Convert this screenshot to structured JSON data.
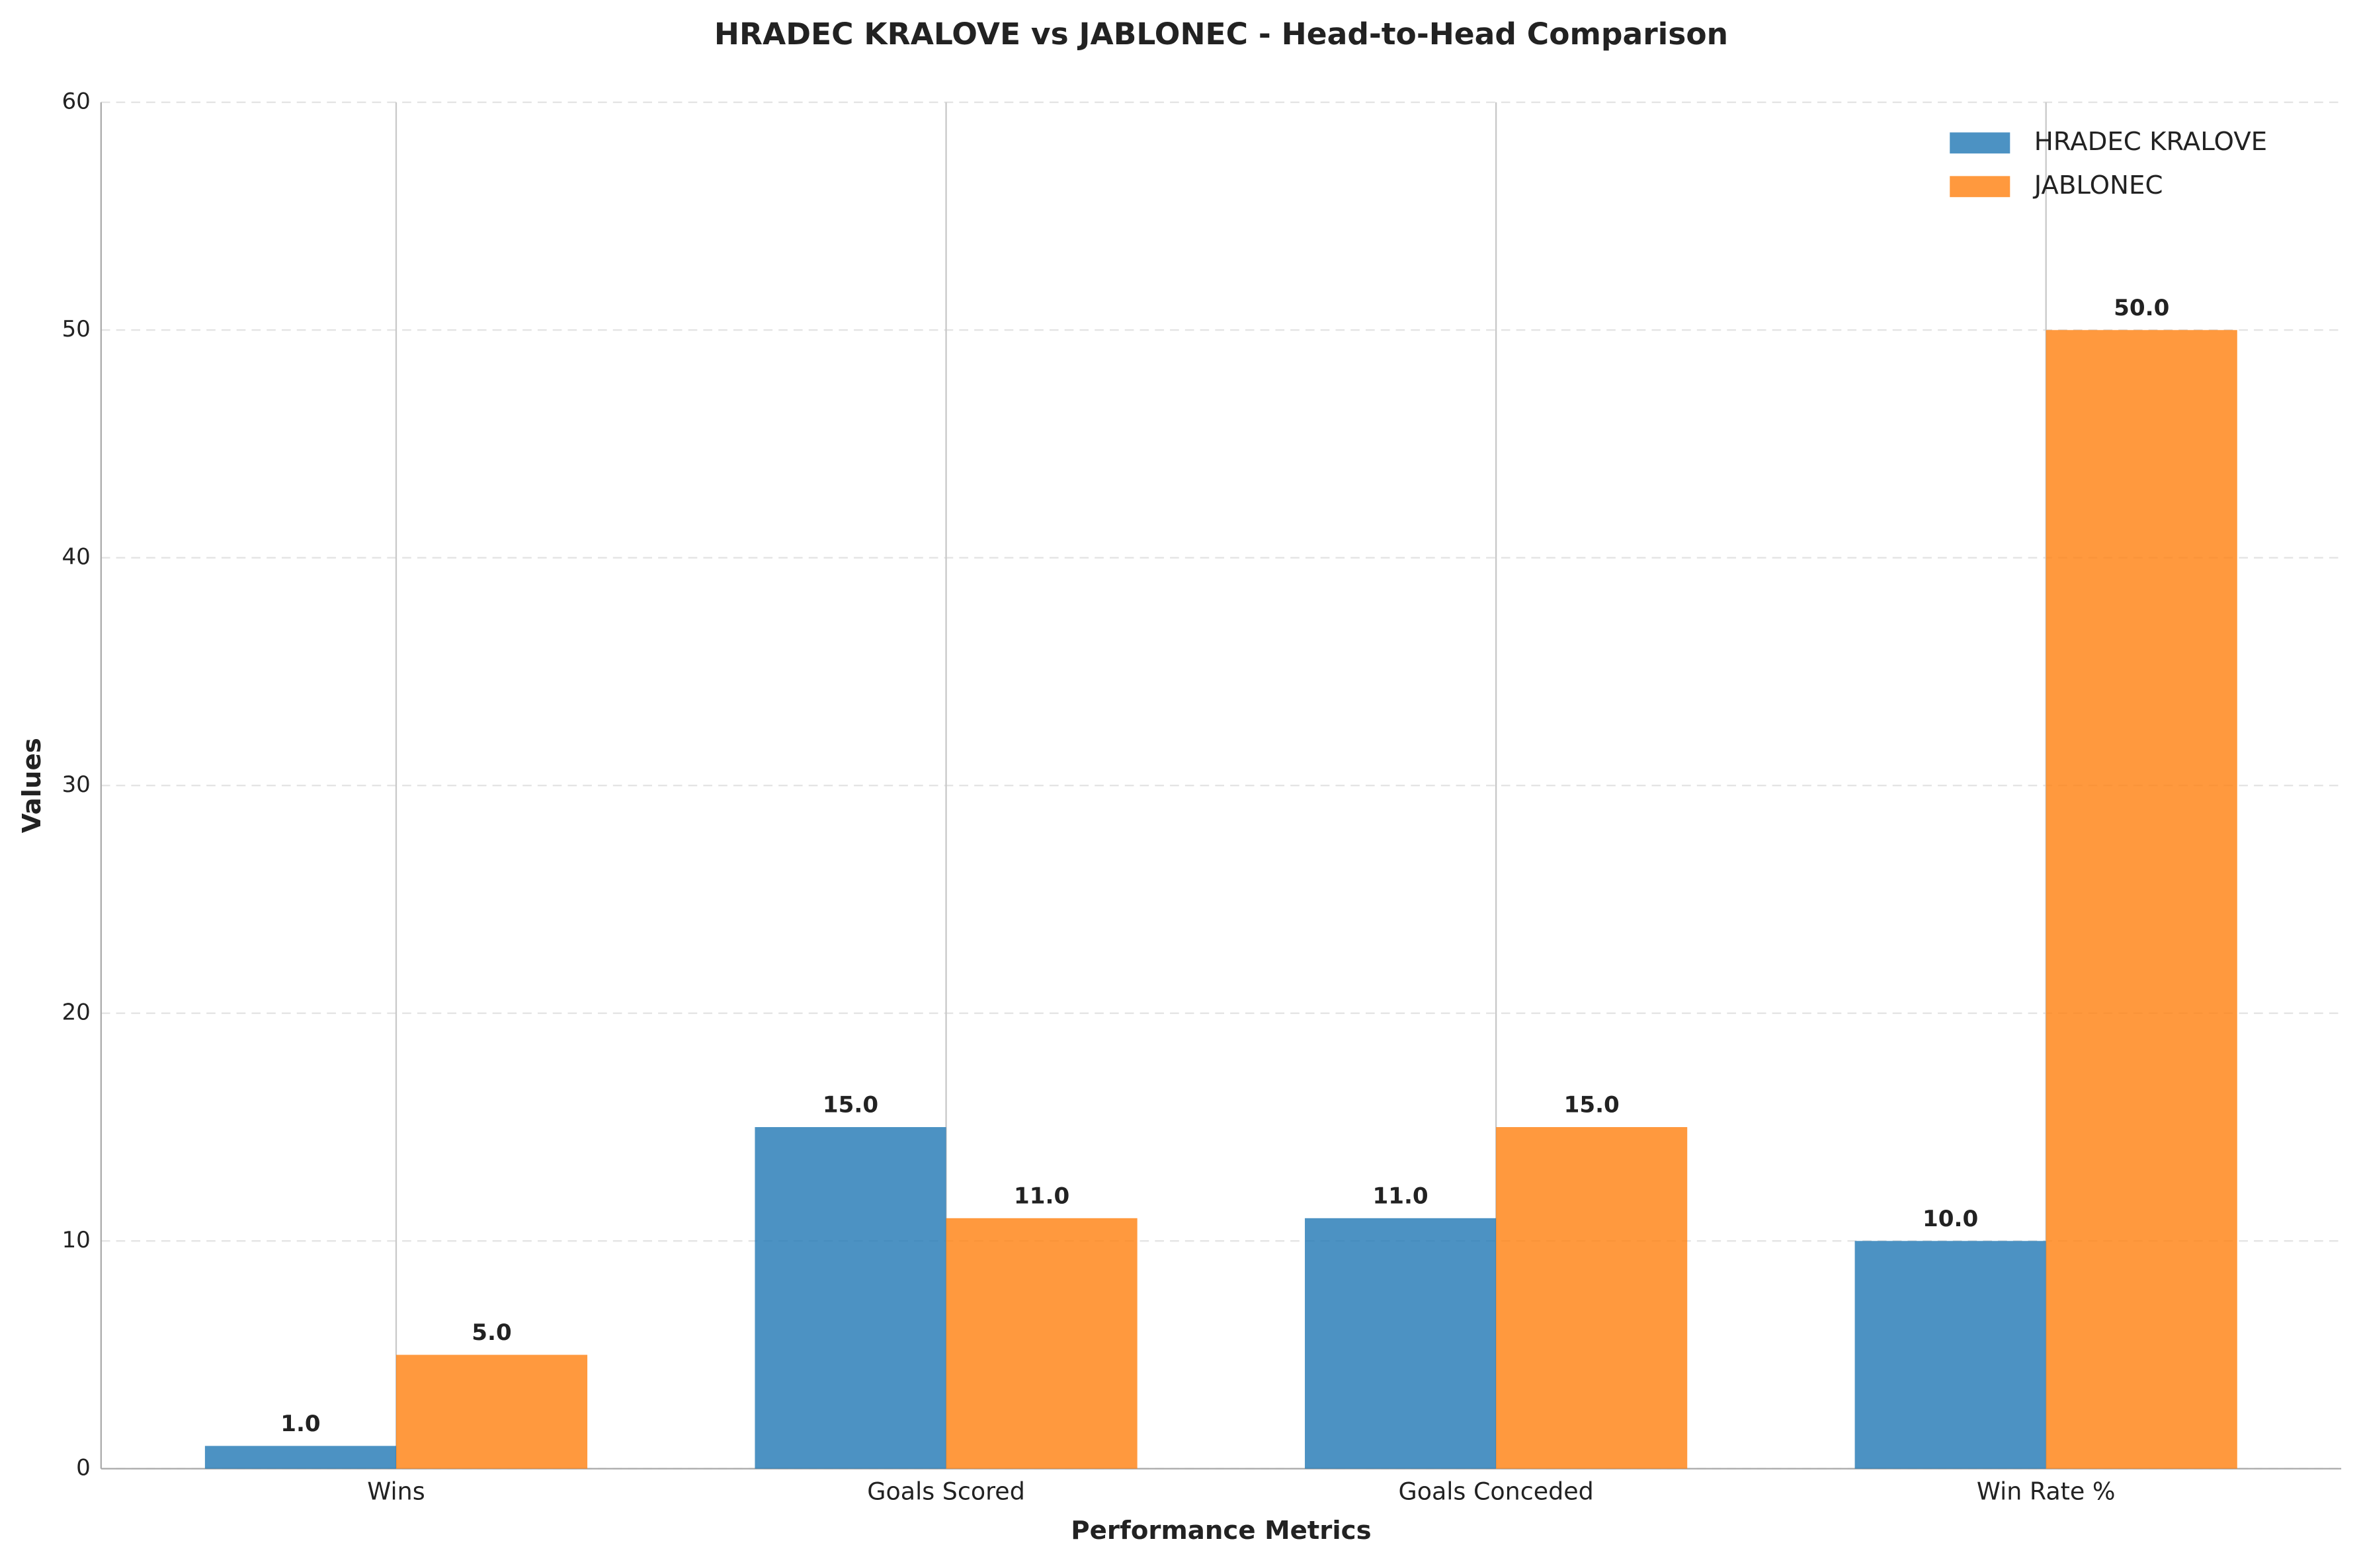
{
  "chart_data": {
    "type": "bar",
    "title": "HRADEC KRALOVE vs JABLONEC - Head-to-Head Comparison",
    "x_label": "Performance Metrics",
    "y_label": "Values",
    "categories": [
      "Wins",
      "Goals Scored",
      "Goals Conceded",
      "Win Rate %"
    ],
    "series": [
      {
        "name": "HRADEC KRALOVE",
        "color": "#1f77b4",
        "values": [
          1,
          15,
          11,
          10
        ],
        "value_labels": [
          "1.0",
          "15.0",
          "11.0",
          "10.0"
        ]
      },
      {
        "name": "JABLONEC",
        "color": "#ff7f0e",
        "values": [
          5,
          11,
          15,
          50
        ],
        "value_labels": [
          "5.0",
          "11.0",
          "15.0",
          "50.0"
        ]
      }
    ],
    "ylim": [
      0,
      60
    ],
    "yticks": [
      0,
      10,
      20,
      30,
      40,
      50,
      60
    ],
    "grid": true,
    "legend": "upper-right"
  }
}
